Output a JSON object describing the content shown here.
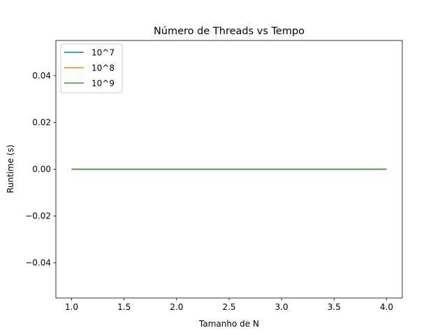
{
  "chart_data": {
    "type": "line",
    "title": "Número de Threads vs Tempo",
    "xlabel": "Tamanho de N",
    "ylabel": "Runtime (s)",
    "xlim": [
      0.85,
      4.15
    ],
    "ylim": [
      -0.055,
      0.055
    ],
    "x_ticks": [
      1.0,
      1.5,
      2.0,
      2.5,
      3.0,
      3.5,
      4.0
    ],
    "x_tick_labels": [
      "1.0",
      "1.5",
      "2.0",
      "2.5",
      "3.0",
      "3.5",
      "4.0"
    ],
    "y_ticks": [
      -0.04,
      -0.02,
      0.0,
      0.02,
      0.04
    ],
    "y_tick_labels": [
      "−0.04",
      "−0.02",
      "0.00",
      "0.02",
      "0.04"
    ],
    "x": [
      1,
      2,
      3,
      4
    ],
    "series": [
      {
        "name": "10^7",
        "values": [
          0,
          0,
          0,
          0
        ],
        "color": "#1f77b4"
      },
      {
        "name": "10^8",
        "values": [
          0,
          0,
          0,
          0
        ],
        "color": "#ff7f0e"
      },
      {
        "name": "10^9",
        "values": [
          0,
          0,
          0,
          0
        ],
        "color": "#2ca02c"
      }
    ],
    "grid": false,
    "legend_position": "upper-left"
  }
}
